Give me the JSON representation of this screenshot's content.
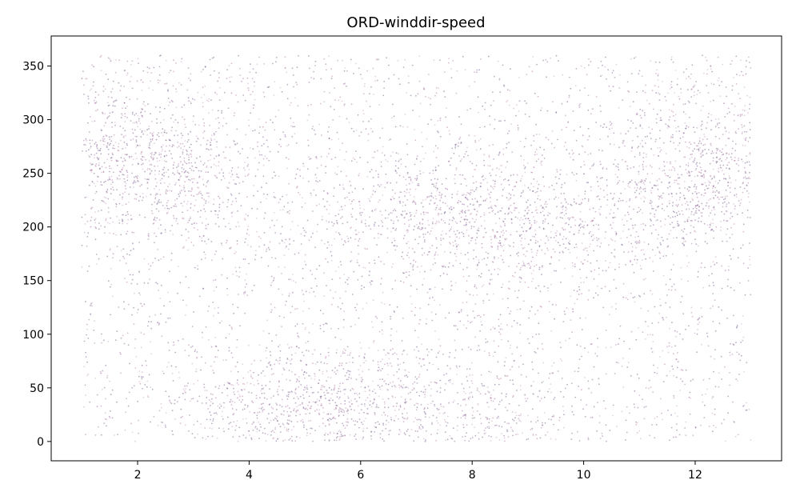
{
  "chart_data": {
    "type": "scatter",
    "title": "ORD-winddir-speed",
    "xlabel": "",
    "ylabel": "",
    "xlim": [
      0.45,
      13.55
    ],
    "ylim": [
      -18,
      378
    ],
    "x_ticks": [
      2,
      4,
      6,
      8,
      10,
      12
    ],
    "y_ticks": [
      0,
      50,
      100,
      150,
      200,
      250,
      300,
      350
    ],
    "grid": false,
    "legend": "none",
    "marker_colors": [
      "#7a4f8a",
      "#a86a9a",
      "#5e4a7a",
      "#c49ab8"
    ],
    "x_range_of_points": [
      1,
      13
    ],
    "y_range_of_points": [
      0,
      360
    ],
    "density_clusters": [
      {
        "x": 1.8,
        "y": 265,
        "weight": 0.1
      },
      {
        "x": 2.8,
        "y": 240,
        "weight": 0.06
      },
      {
        "x": 12.3,
        "y": 245,
        "weight": 0.09
      },
      {
        "x": 11.2,
        "y": 220,
        "weight": 0.06
      },
      {
        "x": 7.6,
        "y": 215,
        "weight": 0.08
      },
      {
        "x": 9.2,
        "y": 195,
        "weight": 0.07
      },
      {
        "x": 6.0,
        "y": 200,
        "weight": 0.04
      },
      {
        "x": 5.2,
        "y": 32,
        "weight": 0.08
      },
      {
        "x": 4.0,
        "y": 28,
        "weight": 0.05
      },
      {
        "x": 6.6,
        "y": 40,
        "weight": 0.05
      },
      {
        "x": 8.3,
        "y": 25,
        "weight": 0.04
      },
      {
        "x": 1.6,
        "y": 330,
        "weight": 0.03
      },
      {
        "x": 12.0,
        "y": 330,
        "weight": 0.03
      }
    ]
  }
}
